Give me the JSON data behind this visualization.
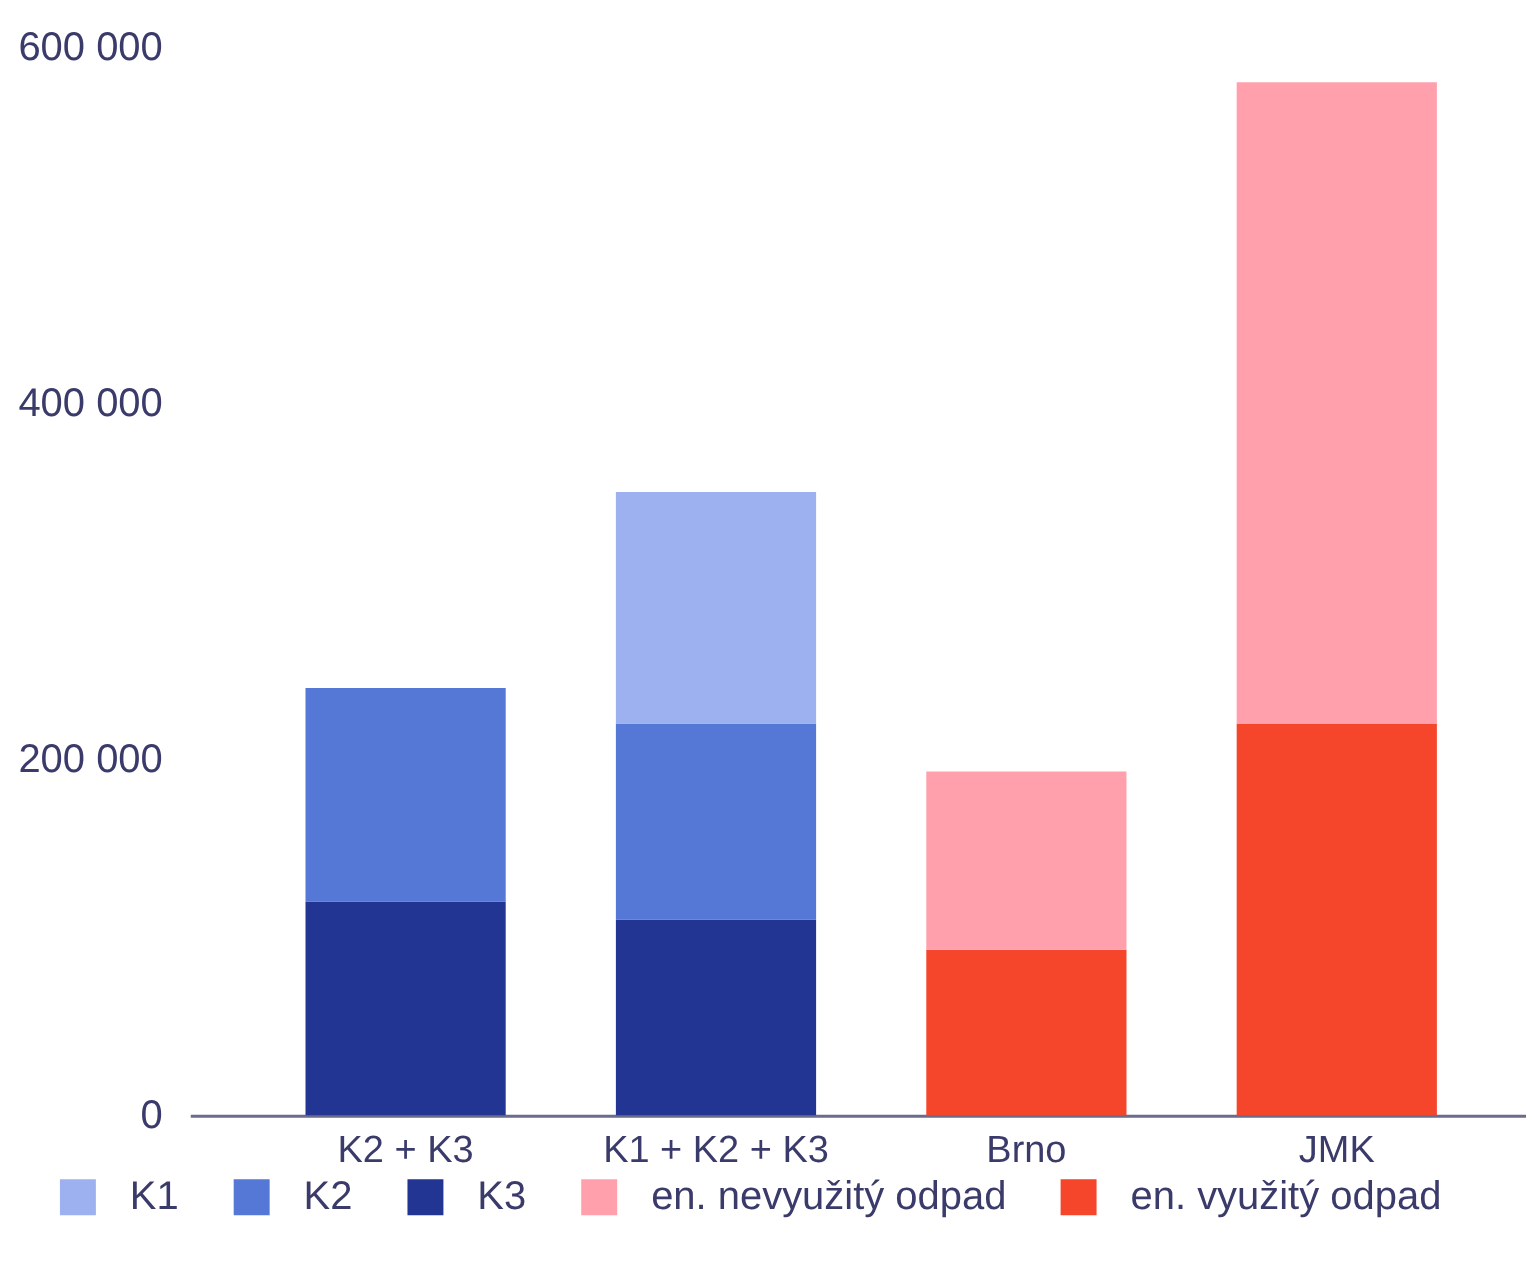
{
  "chart_data": {
    "type": "bar",
    "stacked": true,
    "categories": [
      "K2 + K3",
      "K1 + K2 + K3",
      "Brno",
      "JMK"
    ],
    "series": [
      {
        "name": "en. využitý odpad",
        "color": "#f5452a",
        "values": [
          null,
          null,
          93000,
          220000
        ]
      },
      {
        "name": "en. nevyužitý odpad",
        "color": "#ffa0ac",
        "values": [
          null,
          null,
          100000,
          360000
        ]
      },
      {
        "name": "K3",
        "color": "#233593",
        "values": [
          120000,
          110000,
          null,
          null
        ]
      },
      {
        "name": "K2",
        "color": "#5577d6",
        "values": [
          120000,
          110000,
          null,
          null
        ]
      },
      {
        "name": "K1",
        "color": "#9db0ef",
        "values": [
          null,
          130000,
          null,
          null
        ]
      }
    ],
    "ylim": [
      0,
      600000
    ],
    "yticks": [
      0,
      {
        "value": 200000,
        "label": "200 000"
      },
      {
        "value": 400000,
        "label": "400 000"
      },
      {
        "value": 600000,
        "label": "600 000"
      }
    ],
    "grid": false,
    "legend": "bottom"
  }
}
